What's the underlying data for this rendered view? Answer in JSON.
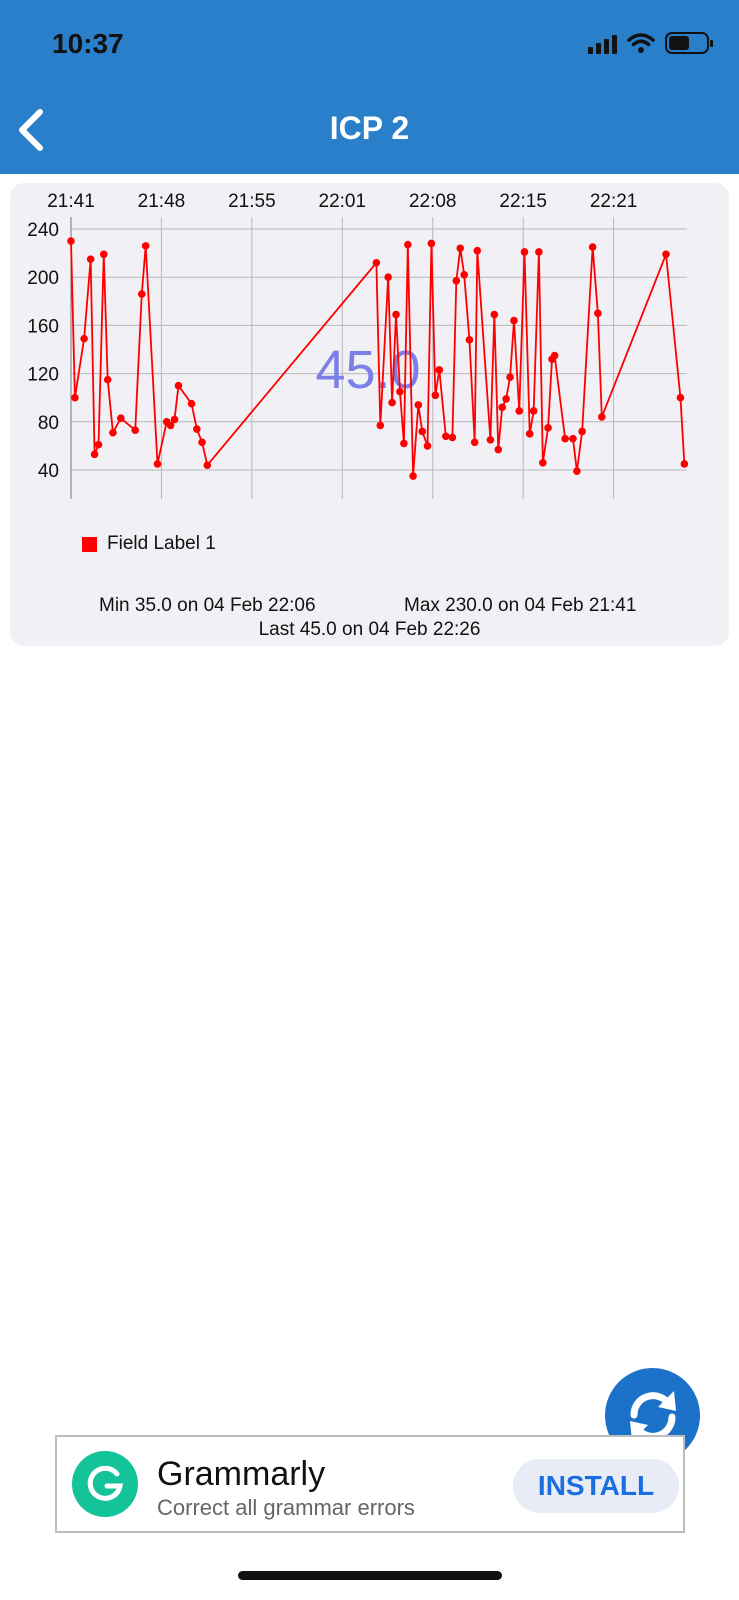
{
  "status_bar": {
    "time": "10:37"
  },
  "header": {
    "title": "ICP 2",
    "back_icon": "chevron-left-icon"
  },
  "colors": {
    "header_bg": "#2a7fcb",
    "series": "#ff0000",
    "overlay_value": "#7b80e8",
    "fab": "#1c72c8",
    "ad_logo": "#15c39a",
    "install_text": "#1a6fe0"
  },
  "chart_data": {
    "type": "line",
    "x_ticks": [
      "21:41",
      "21:48",
      "21:55",
      "22:01",
      "22:08",
      "22:15",
      "22:21"
    ],
    "y_ticks": [
      40,
      80,
      120,
      160,
      200,
      240
    ],
    "ylim": [
      20,
      250
    ],
    "grid": true,
    "legend_position": "bottom-left",
    "overlay_value": "45.0",
    "series": [
      {
        "name": "Field Label 1",
        "color": "#ff0000",
        "points": [
          [
            0.0,
            230
          ],
          [
            0.3,
            100
          ],
          [
            1.0,
            149
          ],
          [
            1.5,
            215
          ],
          [
            1.8,
            53
          ],
          [
            2.1,
            61
          ],
          [
            2.5,
            219
          ],
          [
            2.8,
            115
          ],
          [
            3.2,
            71
          ],
          [
            3.8,
            83
          ],
          [
            4.9,
            73
          ],
          [
            5.4,
            186
          ],
          [
            5.7,
            226
          ],
          [
            6.6,
            45
          ],
          [
            7.3,
            80
          ],
          [
            7.6,
            77
          ],
          [
            7.9,
            82
          ],
          [
            8.2,
            110
          ],
          [
            9.2,
            95
          ],
          [
            9.6,
            74
          ],
          [
            10.0,
            63
          ],
          [
            10.4,
            44
          ],
          [
            23.3,
            212
          ],
          [
            23.6,
            77
          ],
          [
            24.2,
            200
          ],
          [
            24.5,
            96
          ],
          [
            24.8,
            169
          ],
          [
            25.1,
            105
          ],
          [
            25.4,
            62
          ],
          [
            25.7,
            227
          ],
          [
            26.1,
            35
          ],
          [
            26.5,
            94
          ],
          [
            26.8,
            72
          ],
          [
            27.2,
            60
          ],
          [
            27.5,
            228
          ],
          [
            27.8,
            102
          ],
          [
            28.1,
            123
          ],
          [
            28.6,
            68
          ],
          [
            29.1,
            67
          ],
          [
            29.4,
            197
          ],
          [
            29.7,
            224
          ],
          [
            30.0,
            202
          ],
          [
            30.4,
            148
          ],
          [
            30.8,
            63
          ],
          [
            31.0,
            222
          ],
          [
            32.0,
            65
          ],
          [
            32.3,
            169
          ],
          [
            32.6,
            57
          ],
          [
            32.9,
            92
          ],
          [
            33.2,
            99
          ],
          [
            33.5,
            117
          ],
          [
            33.8,
            164
          ],
          [
            34.2,
            89
          ],
          [
            34.6,
            221
          ],
          [
            35.0,
            70
          ],
          [
            35.3,
            89
          ],
          [
            35.7,
            221
          ],
          [
            36.0,
            46
          ],
          [
            36.4,
            75
          ],
          [
            36.7,
            132
          ],
          [
            36.9,
            135
          ],
          [
            37.7,
            66
          ],
          [
            38.3,
            66
          ],
          [
            38.6,
            39
          ],
          [
            39.0,
            72
          ],
          [
            39.8,
            225
          ],
          [
            40.2,
            170
          ],
          [
            40.5,
            84
          ],
          [
            45.4,
            219
          ],
          [
            46.5,
            100
          ],
          [
            46.8,
            45
          ]
        ]
      }
    ],
    "x_range_minutes": [
      0,
      47
    ]
  },
  "legend": {
    "label": "Field Label 1"
  },
  "stats": {
    "min": "Min 35.0 on 04 Feb 22:06",
    "max": "Max 230.0 on 04 Feb 21:41",
    "last": "Last 45.0 on 04 Feb 22:26"
  },
  "fab": {
    "icon": "refresh-icon"
  },
  "ad": {
    "logo_icon": "grammarly-g-icon",
    "name": "Grammarly",
    "tagline": "Correct all grammar errors",
    "install_label": "INSTALL"
  }
}
